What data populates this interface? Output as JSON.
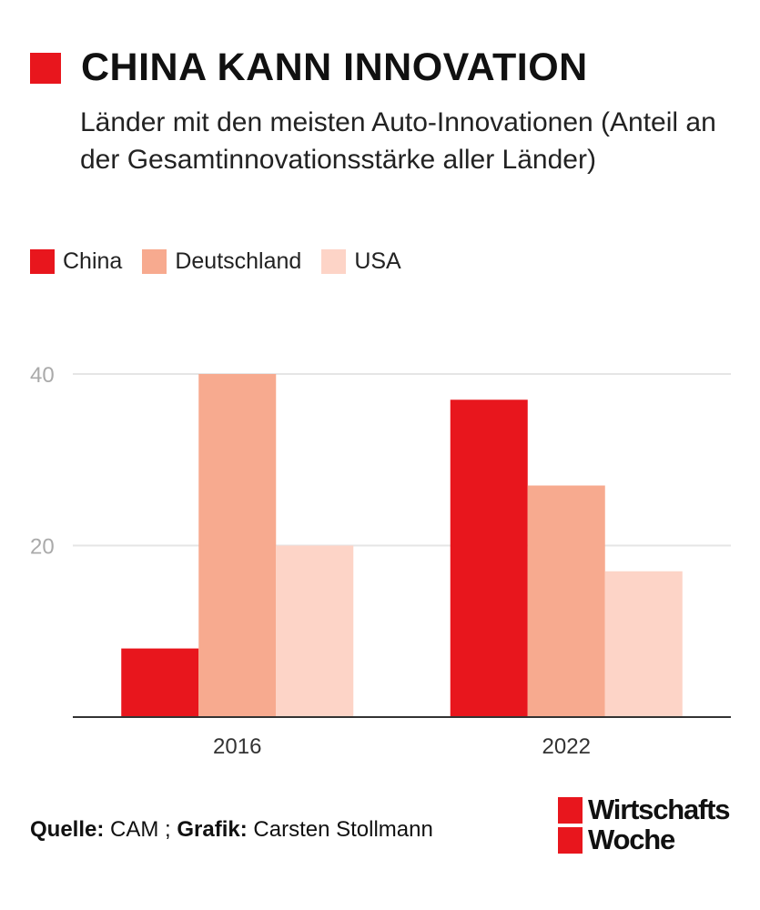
{
  "header": {
    "title": "CHINA KANN INNOVATION",
    "subtitle": "Länder mit den meisten Auto-Innovationen (Anteil an der Gesamtinnovationsstärke aller Länder)"
  },
  "colors": {
    "accent": "#e8161d",
    "china": "#e8161d",
    "deutschland": "#f7aa8f",
    "usa": "#fdd4c7",
    "grid": "#e5e5e5",
    "axis": "#333333",
    "tick_y": "#aaaaaa",
    "tick_x": "#333333"
  },
  "legend": [
    {
      "label": "China",
      "color": "#e8161d"
    },
    {
      "label": "Deutschland",
      "color": "#f7aa8f"
    },
    {
      "label": "USA",
      "color": "#fdd4c7"
    }
  ],
  "chart_data": {
    "type": "bar",
    "title": "CHINA KANN INNOVATION",
    "subtitle": "Länder mit den meisten Auto-Innovationen (Anteil an der Gesamtinnovationsstärke aller Länder)",
    "categories": [
      "2016",
      "2022"
    ],
    "series": [
      {
        "name": "China",
        "values": [
          8,
          37
        ]
      },
      {
        "name": "Deutschland",
        "values": [
          40,
          27
        ]
      },
      {
        "name": "USA",
        "values": [
          20,
          17
        ]
      }
    ],
    "yticks": [
      20,
      40
    ],
    "ylim": [
      0,
      40
    ],
    "xlabel": "",
    "ylabel": "",
    "grid": true,
    "legend_position": "top-left"
  },
  "footer": {
    "source_label": "Quelle:",
    "source_value": "CAM ;",
    "credit_label": "Grafik:",
    "credit_value": "Carsten Stollmann"
  },
  "logo": {
    "line1": "Wirtschafts",
    "line2": "Woche"
  }
}
